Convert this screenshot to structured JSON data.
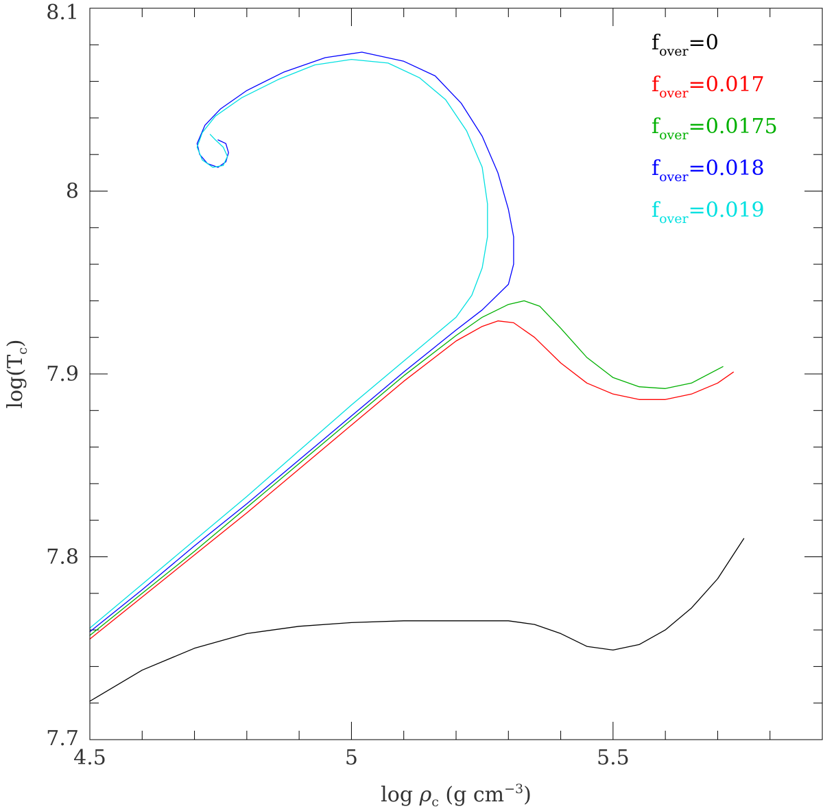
{
  "chart_data": {
    "type": "line",
    "title": "",
    "xlabel": {
      "pre": "log ",
      "sym": "ρ",
      "sub": "c",
      "mid": " (g  cm",
      "sup": "−3",
      "post": ")"
    },
    "ylabel": {
      "pre": "log(T",
      "sub": "c",
      "post": ")"
    },
    "xlim": [
      4.5,
      5.9
    ],
    "ylim": [
      7.7,
      8.1
    ],
    "x_ticks": [
      {
        "v": 4.5,
        "label": "4.5"
      },
      {
        "v": 5.0,
        "label": "5"
      },
      {
        "v": 5.5,
        "label": "5.5"
      }
    ],
    "x_minor_step": 0.1,
    "y_ticks": [
      {
        "v": 7.7,
        "label": "7.7"
      },
      {
        "v": 7.8,
        "label": "7.8"
      },
      {
        "v": 7.9,
        "label": "7.9"
      },
      {
        "v": 8.0,
        "label": "8"
      },
      {
        "v": 8.1,
        "label": "8.1"
      }
    ],
    "y_minor_step": 0.02,
    "grid": false,
    "legend_position": "top-right",
    "series": [
      {
        "label_base": "f",
        "label_sub": "over",
        "label_value": "=0",
        "color": "#000000",
        "points": [
          [
            4.5,
            7.721
          ],
          [
            4.6,
            7.738
          ],
          [
            4.7,
            7.75
          ],
          [
            4.8,
            7.758
          ],
          [
            4.9,
            7.762
          ],
          [
            5.0,
            7.764
          ],
          [
            5.1,
            7.765
          ],
          [
            5.2,
            7.765
          ],
          [
            5.3,
            7.765
          ],
          [
            5.35,
            7.763
          ],
          [
            5.4,
            7.758
          ],
          [
            5.45,
            7.751
          ],
          [
            5.5,
            7.749
          ],
          [
            5.55,
            7.752
          ],
          [
            5.6,
            7.76
          ],
          [
            5.65,
            7.772
          ],
          [
            5.7,
            7.788
          ],
          [
            5.75,
            7.81
          ]
        ]
      },
      {
        "label_base": "f",
        "label_sub": "over",
        "label_value": "=0.017",
        "color": "#ff0000",
        "points": [
          [
            4.5,
            7.755
          ],
          [
            4.6,
            7.778
          ],
          [
            4.7,
            7.801
          ],
          [
            4.8,
            7.824
          ],
          [
            4.9,
            7.848
          ],
          [
            5.0,
            7.872
          ],
          [
            5.1,
            7.896
          ],
          [
            5.2,
            7.918
          ],
          [
            5.25,
            7.926
          ],
          [
            5.28,
            7.929
          ],
          [
            5.31,
            7.928
          ],
          [
            5.35,
            7.92
          ],
          [
            5.4,
            7.906
          ],
          [
            5.45,
            7.895
          ],
          [
            5.5,
            7.889
          ],
          [
            5.55,
            7.886
          ],
          [
            5.6,
            7.886
          ],
          [
            5.65,
            7.889
          ],
          [
            5.7,
            7.895
          ],
          [
            5.73,
            7.901
          ]
        ]
      },
      {
        "label_base": "f",
        "label_sub": "over",
        "label_value": "=0.0175",
        "color": "#00b000",
        "points": [
          [
            4.5,
            7.757
          ],
          [
            4.6,
            7.78
          ],
          [
            4.7,
            7.803
          ],
          [
            4.8,
            7.827
          ],
          [
            4.9,
            7.851
          ],
          [
            5.0,
            7.875
          ],
          [
            5.1,
            7.899
          ],
          [
            5.2,
            7.921
          ],
          [
            5.25,
            7.931
          ],
          [
            5.3,
            7.938
          ],
          [
            5.33,
            7.94
          ],
          [
            5.36,
            7.937
          ],
          [
            5.4,
            7.925
          ],
          [
            5.45,
            7.909
          ],
          [
            5.5,
            7.898
          ],
          [
            5.55,
            7.893
          ],
          [
            5.6,
            7.892
          ],
          [
            5.65,
            7.895
          ],
          [
            5.71,
            7.904
          ]
        ]
      },
      {
        "label_base": "f",
        "label_sub": "over",
        "label_value": "=0.018",
        "color": "#0000ff",
        "points": [
          [
            4.5,
            7.759
          ],
          [
            4.6,
            7.782
          ],
          [
            4.7,
            7.806
          ],
          [
            4.8,
            7.829
          ],
          [
            4.9,
            7.853
          ],
          [
            5.0,
            7.877
          ],
          [
            5.1,
            7.901
          ],
          [
            5.2,
            7.924
          ],
          [
            5.25,
            7.935
          ],
          [
            5.3,
            7.949
          ],
          [
            5.31,
            7.96
          ],
          [
            5.31,
            7.975
          ],
          [
            5.3,
            7.99
          ],
          [
            5.28,
            8.01
          ],
          [
            5.25,
            8.03
          ],
          [
            5.21,
            8.048
          ],
          [
            5.16,
            8.063
          ],
          [
            5.1,
            8.071
          ],
          [
            5.02,
            8.076
          ],
          [
            4.95,
            8.073
          ],
          [
            4.87,
            8.065
          ],
          [
            4.8,
            8.055
          ],
          [
            4.75,
            8.045
          ],
          [
            4.72,
            8.036
          ],
          [
            4.705,
            8.026
          ],
          [
            4.71,
            8.02
          ],
          [
            4.725,
            8.015
          ],
          [
            4.745,
            8.013
          ],
          [
            4.76,
            8.016
          ],
          [
            4.765,
            8.021
          ],
          [
            4.76,
            8.026
          ],
          [
            4.745,
            8.028
          ]
        ]
      },
      {
        "label_base": "f",
        "label_sub": "over",
        "label_value": "=0.019",
        "color": "#00e0e0",
        "points": [
          [
            4.5,
            7.761
          ],
          [
            4.6,
            7.785
          ],
          [
            4.7,
            7.809
          ],
          [
            4.8,
            7.833
          ],
          [
            4.9,
            7.858
          ],
          [
            5.0,
            7.883
          ],
          [
            5.1,
            7.907
          ],
          [
            5.2,
            7.931
          ],
          [
            5.23,
            7.943
          ],
          [
            5.25,
            7.958
          ],
          [
            5.26,
            7.975
          ],
          [
            5.26,
            7.993
          ],
          [
            5.25,
            8.013
          ],
          [
            5.22,
            8.033
          ],
          [
            5.18,
            8.05
          ],
          [
            5.13,
            8.062
          ],
          [
            5.07,
            8.07
          ],
          [
            5.0,
            8.072
          ],
          [
            4.93,
            8.069
          ],
          [
            4.86,
            8.061
          ],
          [
            4.79,
            8.051
          ],
          [
            4.74,
            8.041
          ],
          [
            4.715,
            8.032
          ],
          [
            4.705,
            8.024
          ],
          [
            4.715,
            8.017
          ],
          [
            4.735,
            8.013
          ],
          [
            4.755,
            8.014
          ],
          [
            4.763,
            8.019
          ],
          [
            4.755,
            8.024
          ],
          [
            4.74,
            8.028
          ],
          [
            4.73,
            8.031
          ]
        ]
      }
    ]
  }
}
